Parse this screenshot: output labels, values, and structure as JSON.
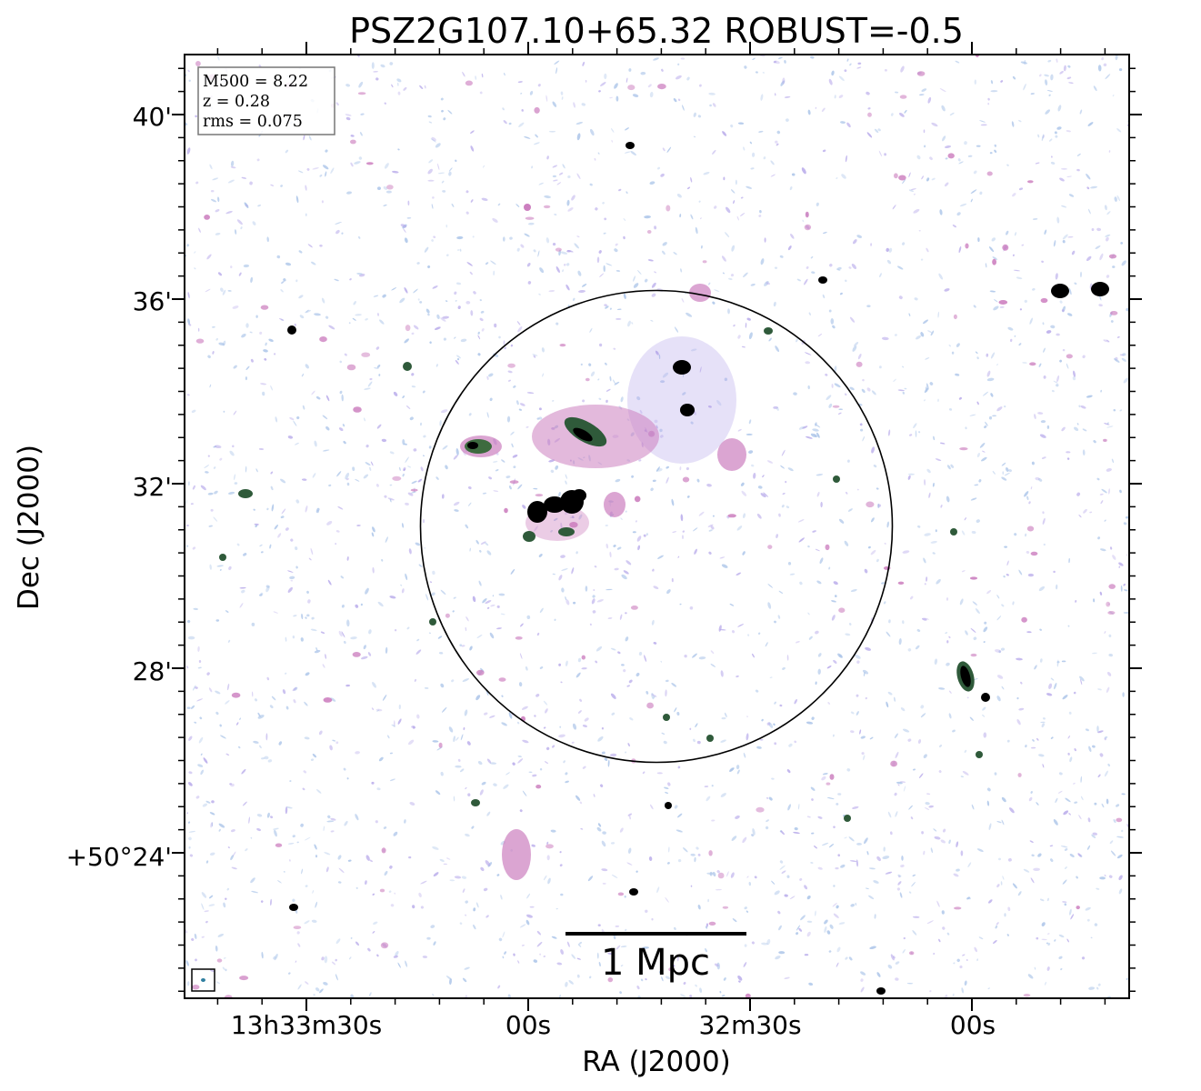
{
  "figure": {
    "title": "PSZ2G107.10+65.32 ROBUST=-0.5",
    "x_axis_label": "RA (J2000)",
    "y_axis_label": "Dec (J2000)",
    "x_tick_labels": [
      "13h33m30s",
      "00s",
      "32m30s",
      "00s"
    ],
    "y_tick_labels": [
      "40'",
      "36'",
      "32'",
      "28'",
      "+50°24'"
    ],
    "info_box": [
      "M500 = 8.22",
      "z = 0.28",
      "rms = 0.075"
    ],
    "scale_bar_label": "1 Mpc",
    "colors": {
      "noise_blue": "#a9c3e8",
      "noise_lavender": "#b7a9ea",
      "emission_pink": "#cc7fbf",
      "emission_green": "#2f5a3a",
      "source_core": "#000000"
    }
  }
}
